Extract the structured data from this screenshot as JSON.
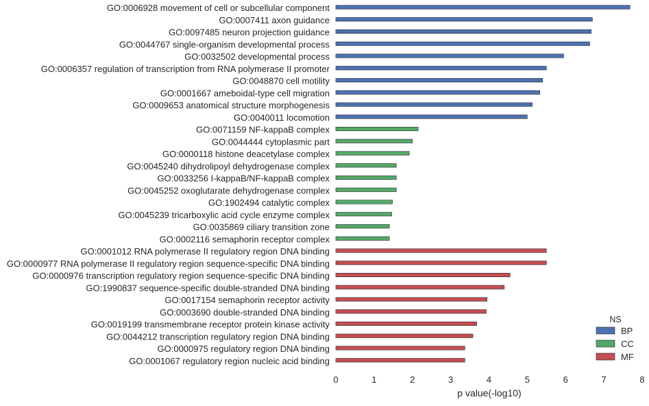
{
  "chart_data": {
    "type": "bar",
    "orientation": "horizontal",
    "title": "",
    "xlabel": "p value(-log10)",
    "ylabel": "",
    "xlim": [
      0,
      8
    ],
    "xticks": [
      "0",
      "1",
      "2",
      "3",
      "4",
      "5",
      "6",
      "7",
      "8"
    ],
    "grid": false,
    "legend": {
      "title": "NS",
      "placement": "bottom-right",
      "entries": [
        {
          "label": "BP",
          "color": "#4c72b0"
        },
        {
          "label": "CC",
          "color": "#55a868"
        },
        {
          "label": "MF",
          "color": "#c44e52"
        }
      ]
    },
    "bars": [
      {
        "label": "GO:0006928 movement of cell or subcellular component",
        "value": 7.68,
        "ns": "BP"
      },
      {
        "label": "GO:0007411 axon guidance",
        "value": 6.7,
        "ns": "BP"
      },
      {
        "label": "GO:0097485 neuron projection guidance",
        "value": 6.67,
        "ns": "BP"
      },
      {
        "label": "GO:0044767 single-organism developmental process",
        "value": 6.63,
        "ns": "BP"
      },
      {
        "label": "GO:0032502 developmental process",
        "value": 5.95,
        "ns": "BP"
      },
      {
        "label": "GO:0006357 regulation of transcription from RNA polymerase II promoter",
        "value": 5.5,
        "ns": "BP"
      },
      {
        "label": "GO:0048870 cell motility",
        "value": 5.4,
        "ns": "BP"
      },
      {
        "label": "GO:0001667 ameboidal-type cell migration",
        "value": 5.33,
        "ns": "BP"
      },
      {
        "label": "GO:0009653 anatomical structure morphogenesis",
        "value": 5.13,
        "ns": "BP"
      },
      {
        "label": "GO:0040011 locomotion",
        "value": 5.0,
        "ns": "BP"
      },
      {
        "label": "GO:0071159 NF-kappaB complex",
        "value": 2.15,
        "ns": "CC"
      },
      {
        "label": "GO:0044444 cytoplasmic part",
        "value": 2.0,
        "ns": "CC"
      },
      {
        "label": "GO:0000118 histone deacetylase complex",
        "value": 1.92,
        "ns": "CC"
      },
      {
        "label": "GO:0045240 dihydrolipoyl dehydrogenase complex",
        "value": 1.58,
        "ns": "CC"
      },
      {
        "label": "GO:0033256 I-kappaB/NF-kappaB complex",
        "value": 1.58,
        "ns": "CC"
      },
      {
        "label": "GO:0045252 oxoglutarate dehydrogenase complex",
        "value": 1.58,
        "ns": "CC"
      },
      {
        "label": "GO:1902494 catalytic complex",
        "value": 1.48,
        "ns": "CC"
      },
      {
        "label": "GO:0045239 tricarboxylic acid cycle enzyme complex",
        "value": 1.46,
        "ns": "CC"
      },
      {
        "label": "GO:0035869 ciliary transition zone",
        "value": 1.4,
        "ns": "CC"
      },
      {
        "label": "GO:0002116 semaphorin receptor complex",
        "value": 1.4,
        "ns": "CC"
      },
      {
        "label": "GO:0001012 RNA polymerase II regulatory region DNA binding",
        "value": 5.5,
        "ns": "MF"
      },
      {
        "label": "GO:0000977 RNA polymerase II regulatory region sequence-specific DNA binding",
        "value": 5.5,
        "ns": "MF"
      },
      {
        "label": "GO:0000976 transcription regulatory region sequence-specific DNA binding",
        "value": 4.55,
        "ns": "MF"
      },
      {
        "label": "GO:1990837 sequence-specific double-stranded DNA binding",
        "value": 4.4,
        "ns": "MF"
      },
      {
        "label": "GO:0017154 semaphorin receptor activity",
        "value": 3.95,
        "ns": "MF"
      },
      {
        "label": "GO:0003690 double-stranded DNA binding",
        "value": 3.93,
        "ns": "MF"
      },
      {
        "label": "GO:0019199 transmembrane receptor protein kinase activity",
        "value": 3.68,
        "ns": "MF"
      },
      {
        "label": "GO:0044212 transcription regulatory region DNA binding",
        "value": 3.58,
        "ns": "MF"
      },
      {
        "label": "GO:0000975 regulatory region DNA binding",
        "value": 3.37,
        "ns": "MF"
      },
      {
        "label": "GO:0001067 regulatory region nucleic acid binding",
        "value": 3.37,
        "ns": "MF"
      }
    ]
  }
}
